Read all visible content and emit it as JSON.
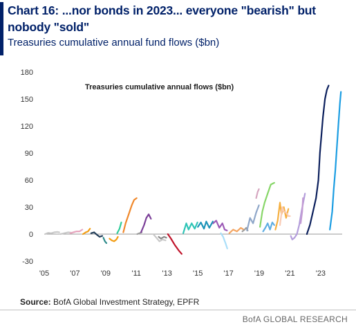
{
  "header": {
    "title": "Chart 16: ...nor bonds in 2023... everyone \"bearish\" but nobody \"sold\"",
    "subtitle": "Treasuries cumulative annual fund flows ($bn)"
  },
  "footer": {
    "source_label": "Source:",
    "source_text": "BofA Global Investment Strategy, EPFR",
    "brand": "BofA GLOBAL RESEARCH"
  },
  "colors": {
    "accent": "#012169"
  },
  "chart_data": {
    "type": "line",
    "title": "Treasuries cumulative annual flows ($bn)",
    "xlabel": "",
    "ylabel": "",
    "xlim": [
      2005,
      2024.4
    ],
    "ylim": [
      -30,
      180
    ],
    "yticks": [
      -30,
      0,
      30,
      60,
      90,
      120,
      150,
      180
    ],
    "xticks": [
      {
        "value": 2005,
        "label": "'05"
      },
      {
        "value": 2007,
        "label": "'07"
      },
      {
        "value": 2009,
        "label": "'09"
      },
      {
        "value": 2011,
        "label": "'11"
      },
      {
        "value": 2013,
        "label": "'13"
      },
      {
        "value": 2015,
        "label": "'15"
      },
      {
        "value": 2017,
        "label": "'17"
      },
      {
        "value": 2019,
        "label": "'19"
      },
      {
        "value": 2021,
        "label": "'21"
      },
      {
        "value": 2023,
        "label": "'23"
      }
    ],
    "grid": false,
    "legend": "none",
    "series": [
      {
        "color": "#c8c8c8",
        "x": [
          2005.05,
          2005.25,
          2005.45,
          2005.65,
          2005.85,
          2005.98
        ],
        "y": [
          0,
          1.5,
          1,
          2,
          2.5,
          2
        ]
      },
      {
        "color": "#c8c8c8",
        "x": [
          2006.05,
          2006.3,
          2006.55,
          2006.8,
          2006.98
        ],
        "y": [
          0,
          1,
          2,
          1.5,
          2.5
        ]
      },
      {
        "color": "#e7a4bd",
        "x": [
          2006.7,
          2006.9,
          2007.1,
          2007.3,
          2007.48
        ],
        "y": [
          1,
          2,
          3,
          3,
          5
        ]
      },
      {
        "color": "#f39c12",
        "x": [
          2007.52,
          2007.7,
          2007.85,
          2007.98
        ],
        "y": [
          0,
          2,
          3,
          6
        ]
      },
      {
        "color": "#1f3b57",
        "x": [
          2008.05,
          2008.25,
          2008.45,
          2008.6,
          2008.78
        ],
        "y": [
          1,
          2,
          -1,
          -3,
          -2
        ]
      },
      {
        "color": "#2e8b8b",
        "x": [
          2008.85,
          2008.95,
          2009.05
        ],
        "y": [
          -4,
          -8,
          -10
        ]
      },
      {
        "color": "#f39c12",
        "x": [
          2009.25,
          2009.4,
          2009.55,
          2009.7,
          2009.8
        ],
        "y": [
          -5,
          -7,
          -8,
          -6,
          -3
        ]
      },
      {
        "color": "#2ecc9a",
        "x": [
          2009.75,
          2009.9,
          2010.02
        ],
        "y": [
          1,
          6,
          13
        ]
      },
      {
        "color": "#f0882b",
        "x": [
          2010.15,
          2010.3,
          2010.5,
          2010.7,
          2010.85,
          2011.02
        ],
        "y": [
          2,
          12,
          22,
          32,
          38,
          40
        ]
      },
      {
        "color": "#9e9e9e",
        "x": [
          2011.05,
          2011.2,
          2011.35
        ],
        "y": [
          0,
          1,
          2
        ]
      },
      {
        "color": "#7b3f98",
        "x": [
          2011.3,
          2011.5,
          2011.65,
          2011.8,
          2011.95
        ],
        "y": [
          2,
          10,
          18,
          22,
          17
        ]
      },
      {
        "color": "#c8c8c8",
        "x": [
          2012.1,
          2012.3,
          2012.5,
          2012.7,
          2012.9
        ],
        "y": [
          0,
          -4,
          -8,
          -6,
          -7
        ]
      },
      {
        "color": "#8a8a8a",
        "x": [
          2012.45,
          2012.6,
          2012.8,
          2012.95
        ],
        "y": [
          -3,
          -5,
          -3,
          -4
        ]
      },
      {
        "color": "#c0142b",
        "x": [
          2013.05,
          2013.25,
          2013.5,
          2013.75,
          2013.95
        ],
        "y": [
          0,
          -5,
          -12,
          -18,
          -22
        ]
      },
      {
        "color": "#2ec4b6",
        "x": [
          2014.05,
          2014.25,
          2014.4,
          2014.6,
          2014.8,
          2014.98
        ],
        "y": [
          1,
          12,
          5,
          12,
          6,
          13
        ]
      },
      {
        "color": "#1b93b8",
        "x": [
          2015.0,
          2015.2,
          2015.4,
          2015.55,
          2015.75,
          2015.98
        ],
        "y": [
          8,
          13,
          6,
          14,
          7,
          14
        ]
      },
      {
        "color": "#9b59b6",
        "x": [
          2016.0,
          2016.2,
          2016.4,
          2016.6,
          2016.75,
          2016.9
        ],
        "y": [
          12,
          15,
          7,
          12,
          5,
          4
        ]
      },
      {
        "color": "#a9def9",
        "x": [
          2016.5,
          2016.65,
          2016.8,
          2016.92
        ],
        "y": [
          1,
          -3,
          -10,
          -16
        ]
      },
      {
        "color": "#f4a460",
        "x": [
          2017.05,
          2017.3,
          2017.55,
          2017.8,
          2017.98
        ],
        "y": [
          1,
          5,
          3,
          7,
          5
        ]
      },
      {
        "color": "#9e9e9e",
        "x": [
          2017.9,
          2018.05,
          2018.15,
          2018.25
        ],
        "y": [
          3,
          5,
          7,
          4
        ]
      },
      {
        "color": "#8fa7c9",
        "x": [
          2018.2,
          2018.4,
          2018.6,
          2018.8,
          2018.98
        ],
        "y": [
          4,
          18,
          12,
          24,
          32
        ]
      },
      {
        "color": "#d6a6c0",
        "x": [
          2018.8,
          2018.9,
          2018.98
        ],
        "y": [
          40,
          47,
          50
        ]
      },
      {
        "color": "#87d668",
        "x": [
          2019.05,
          2019.2,
          2019.35,
          2019.55,
          2019.75,
          2019.98
        ],
        "y": [
          8,
          25,
          35,
          45,
          55,
          57
        ]
      },
      {
        "color": "#5dade2",
        "x": [
          2019.25,
          2019.4,
          2019.55,
          2019.7,
          2019.85,
          2019.98
        ],
        "y": [
          3,
          7,
          12,
          5,
          13,
          10
        ]
      },
      {
        "color": "#f5b041",
        "x": [
          2020.05,
          2020.2,
          2020.35,
          2020.45,
          2020.6,
          2020.75,
          2020.9
        ],
        "y": [
          5,
          15,
          35,
          22,
          30,
          18,
          28
        ]
      },
      {
        "color": "#f9cbb5",
        "x": [
          2020.35,
          2020.5,
          2020.6,
          2020.75,
          2020.9,
          2021.0
        ],
        "y": [
          10,
          30,
          25,
          24,
          20,
          20
        ]
      },
      {
        "color": "#b39ddb",
        "x": [
          2021.05,
          2021.15,
          2021.3,
          2021.45,
          2021.6,
          2021.75,
          2021.98
        ],
        "y": [
          -2,
          -6,
          -4,
          0,
          10,
          25,
          45
        ]
      },
      {
        "color": "#c39bd3",
        "x": [
          2021.7,
          2021.8,
          2021.85
        ],
        "y": [
          12,
          25,
          40
        ]
      },
      {
        "color": "#0b1f5c",
        "x": [
          2022.1,
          2022.3,
          2022.5,
          2022.7,
          2022.85,
          2022.95,
          2023.05,
          2023.15,
          2023.28,
          2023.4,
          2023.52
        ],
        "y": [
          0,
          10,
          25,
          40,
          60,
          90,
          110,
          130,
          150,
          160,
          165
        ]
      },
      {
        "color": "#1b9de2",
        "x": [
          2023.6,
          2023.75,
          2023.85,
          2023.95,
          2024.05,
          2024.15,
          2024.25,
          2024.32
        ],
        "y": [
          5,
          25,
          50,
          70,
          95,
          120,
          145,
          158
        ]
      }
    ]
  }
}
